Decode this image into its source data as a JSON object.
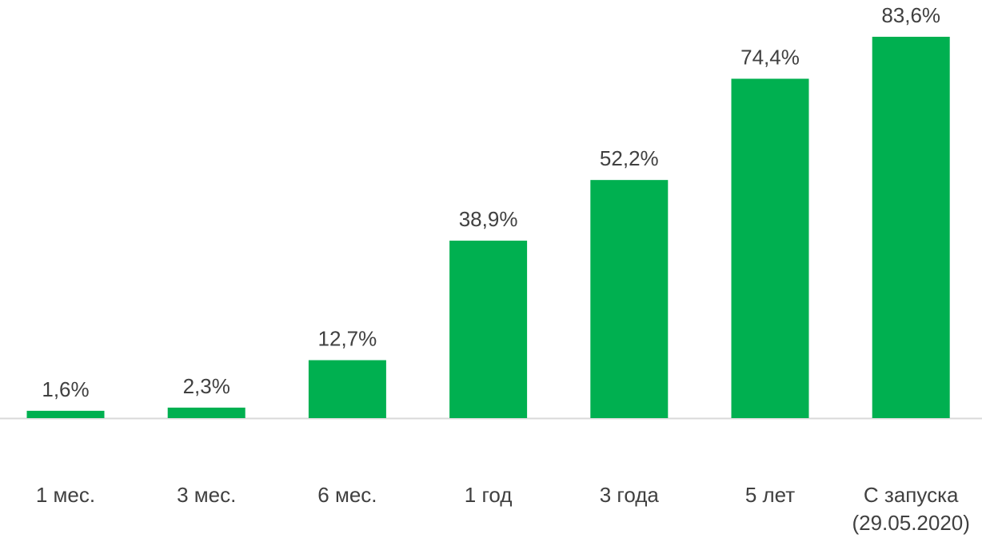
{
  "chart_data": {
    "type": "bar",
    "title": "",
    "xlabel": "",
    "ylabel": "",
    "categories": [
      [
        "1 мес."
      ],
      [
        "3 мес."
      ],
      [
        "6 мес."
      ],
      [
        "1 год"
      ],
      [
        "3 года"
      ],
      [
        "5 лет"
      ],
      [
        "С запуска",
        "(29.05.2020)"
      ]
    ],
    "values": [
      1.6,
      2.3,
      12.7,
      38.9,
      52.2,
      74.4,
      83.6
    ],
    "data_labels": [
      "1,6%",
      "2,3%",
      "12,7%",
      "38,9%",
      "52,2%",
      "74,4%",
      "83,6%"
    ],
    "ylim": [
      0,
      83.6
    ],
    "grid": false,
    "bar_color": "#00B050",
    "axis_color": "#D9D9D9",
    "text_color": "#404040"
  }
}
